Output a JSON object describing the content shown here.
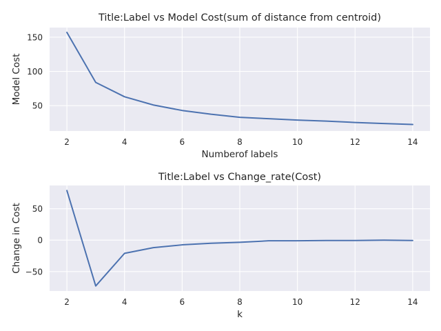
{
  "chart_data": [
    {
      "type": "line",
      "title": "Title:Label vs Model Cost(sum of distance from centroid)",
      "xlabel": "Numberof labels",
      "ylabel": "Model Cost",
      "x": [
        2,
        3,
        4,
        5,
        6,
        7,
        8,
        9,
        10,
        11,
        12,
        13,
        14
      ],
      "series": [
        {
          "values": [
            157,
            84,
            63,
            51,
            43,
            37.5,
            33,
            31,
            29,
            27.5,
            25.5,
            24,
            22.5
          ]
        }
      ],
      "xlim": [
        1.4,
        14.6
      ],
      "ylim": [
        13,
        164
      ],
      "xticks": [
        2,
        4,
        6,
        8,
        10,
        12,
        14
      ],
      "yticks": [
        50,
        100,
        150
      ],
      "grid": true,
      "color": "#4c72b0"
    },
    {
      "type": "line",
      "title": "Title:Label vs Change_rate(Cost)",
      "xlabel": "k",
      "ylabel": "Change in Cost",
      "x": [
        2,
        3,
        4,
        5,
        6,
        7,
        8,
        9,
        10,
        11,
        12,
        13,
        14
      ],
      "series": [
        {
          "values": [
            79,
            -73,
            -21,
            -12,
            -7.5,
            -5,
            -3.5,
            -1,
            -1,
            -0.5,
            -0.5,
            0,
            -0.5
          ]
        }
      ],
      "xlim": [
        1.4,
        14.6
      ],
      "ylim": [
        -81,
        87
      ],
      "xticks": [
        2,
        4,
        6,
        8,
        10,
        12,
        14
      ],
      "yticks": [
        -50,
        0,
        50
      ],
      "grid": true,
      "color": "#4c72b0"
    }
  ]
}
